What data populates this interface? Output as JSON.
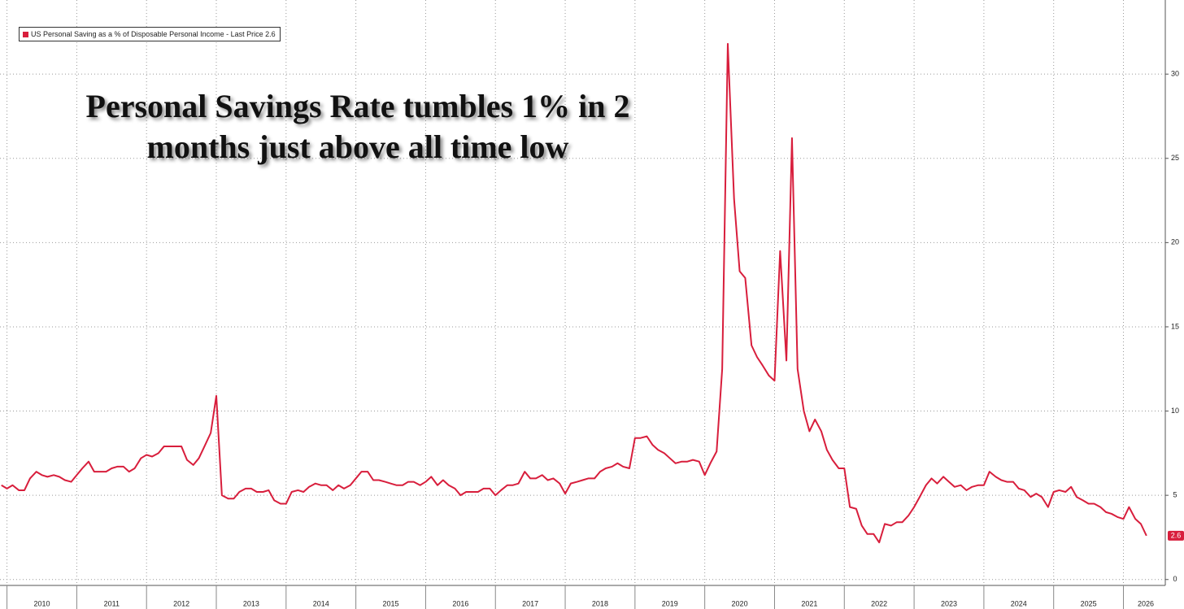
{
  "chart_data": {
    "type": "line",
    "title": "Personal Savings Rate tumbles 1% in 2 months just above all time low",
    "x": [
      2009.92,
      2010.0,
      2010.08,
      2010.17,
      2010.25,
      2010.33,
      2010.42,
      2010.5,
      2010.58,
      2010.67,
      2010.75,
      2010.83,
      2010.92,
      2011.0,
      2011.08,
      2011.17,
      2011.25,
      2011.33,
      2011.42,
      2011.5,
      2011.58,
      2011.67,
      2011.75,
      2011.83,
      2011.92,
      2012.0,
      2012.08,
      2012.17,
      2012.25,
      2012.33,
      2012.42,
      2012.5,
      2012.58,
      2012.67,
      2012.75,
      2012.83,
      2012.92,
      2013.0,
      2013.08,
      2013.17,
      2013.25,
      2013.33,
      2013.42,
      2013.5,
      2013.58,
      2013.67,
      2013.75,
      2013.83,
      2013.92,
      2014.0,
      2014.08,
      2014.17,
      2014.25,
      2014.33,
      2014.42,
      2014.5,
      2014.58,
      2014.67,
      2014.75,
      2014.83,
      2014.92,
      2015.0,
      2015.08,
      2015.17,
      2015.25,
      2015.33,
      2015.42,
      2015.5,
      2015.58,
      2015.67,
      2015.75,
      2015.83,
      2015.92,
      2016.0,
      2016.08,
      2016.17,
      2016.25,
      2016.33,
      2016.42,
      2016.5,
      2016.58,
      2016.67,
      2016.75,
      2016.83,
      2016.92,
      2017.0,
      2017.08,
      2017.17,
      2017.25,
      2017.33,
      2017.42,
      2017.5,
      2017.58,
      2017.67,
      2017.75,
      2017.83,
      2017.92,
      2018.0,
      2018.08,
      2018.17,
      2018.25,
      2018.33,
      2018.42,
      2018.5,
      2018.58,
      2018.67,
      2018.75,
      2018.83,
      2018.92,
      2019.0,
      2019.08,
      2019.17,
      2019.25,
      2019.33,
      2019.42,
      2019.5,
      2019.58,
      2019.67,
      2019.75,
      2019.83,
      2019.92,
      2020.0,
      2020.08,
      2020.17,
      2020.25,
      2020.33,
      2020.42,
      2020.5,
      2020.58,
      2020.67,
      2020.75,
      2020.83,
      2020.92,
      2021.0,
      2021.08,
      2021.17,
      2021.25,
      2021.33,
      2021.42,
      2021.5,
      2021.58,
      2021.67,
      2021.75,
      2021.83,
      2021.92,
      2022.0,
      2022.08,
      2022.17,
      2022.25,
      2022.33,
      2022.42,
      2022.5,
      2022.58,
      2022.67,
      2022.75,
      2022.83,
      2022.92,
      2023.0,
      2023.08,
      2023.17,
      2023.25,
      2023.33,
      2023.42,
      2023.5,
      2023.58,
      2023.67,
      2023.75,
      2023.83,
      2023.92,
      2024.0,
      2024.08,
      2024.17,
      2024.25,
      2024.33,
      2024.42,
      2024.5,
      2024.58,
      2024.67,
      2024.75,
      2024.83,
      2024.92,
      2025.0,
      2025.08,
      2025.17,
      2025.25,
      2025.33,
      2025.42,
      2025.5,
      2025.58,
      2025.67,
      2025.75,
      2025.83,
      2025.92,
      2026.0,
      2026.08,
      2026.17,
      2026.25,
      2026.33
    ],
    "series": [
      {
        "name": "US Personal Saving as a % of Disposable Personal Income - Last Price 2.6",
        "color": "#d81e3c",
        "values": [
          5.6,
          5.4,
          5.6,
          5.3,
          5.3,
          6.0,
          6.4,
          6.2,
          6.1,
          6.2,
          6.1,
          5.9,
          5.8,
          6.2,
          6.6,
          7.0,
          6.4,
          6.4,
          6.4,
          6.6,
          6.7,
          6.7,
          6.4,
          6.6,
          7.2,
          7.4,
          7.3,
          7.5,
          7.9,
          7.9,
          7.9,
          7.9,
          7.1,
          6.8,
          7.2,
          7.9,
          8.7,
          10.9,
          5.0,
          4.8,
          4.8,
          5.2,
          5.4,
          5.4,
          5.2,
          5.2,
          5.3,
          4.7,
          4.5,
          4.5,
          5.2,
          5.3,
          5.2,
          5.5,
          5.7,
          5.6,
          5.6,
          5.3,
          5.6,
          5.4,
          5.6,
          6.0,
          6.4,
          6.4,
          5.9,
          5.9,
          5.8,
          5.7,
          5.6,
          5.6,
          5.8,
          5.8,
          5.6,
          5.8,
          6.1,
          5.6,
          5.9,
          5.6,
          5.4,
          5.0,
          5.2,
          5.2,
          5.2,
          5.4,
          5.4,
          5.0,
          5.3,
          5.6,
          5.6,
          5.7,
          6.4,
          6.0,
          6.0,
          6.2,
          5.9,
          6.0,
          5.7,
          5.1,
          5.7,
          5.8,
          5.9,
          6.0,
          6.0,
          6.4,
          6.6,
          6.7,
          6.9,
          6.7,
          6.6,
          8.4,
          8.4,
          8.5,
          8.0,
          7.7,
          7.5,
          7.2,
          6.9,
          7.0,
          7.0,
          7.1,
          7.0,
          6.2,
          6.9,
          7.6,
          12.5,
          31.8,
          22.6,
          18.3,
          17.9,
          13.9,
          13.2,
          12.7,
          12.1,
          11.8,
          19.5,
          13.0,
          26.2,
          12.5,
          10.0,
          8.8,
          9.5,
          8.8,
          7.7,
          7.1,
          6.6,
          6.6,
          4.3,
          4.2,
          3.2,
          2.7,
          2.7,
          2.2,
          3.3,
          3.2,
          3.4,
          3.4,
          3.8,
          4.3,
          4.9,
          5.6,
          6.0,
          5.7,
          6.1,
          5.8,
          5.5,
          5.6,
          5.3,
          5.5,
          5.6,
          5.6,
          6.4,
          6.1,
          5.9,
          5.8,
          5.8,
          5.4,
          5.3,
          4.9,
          5.1,
          4.9,
          4.3,
          5.2,
          5.3,
          5.2,
          5.5,
          4.9,
          4.7,
          4.5,
          4.5,
          4.3,
          4.0,
          3.9,
          3.7,
          3.6,
          4.3,
          3.6,
          3.3,
          2.6
        ]
      }
    ],
    "xlim": [
      2009.9,
      2026.6
    ],
    "xticks": [
      2010,
      2011,
      2012,
      2013,
      2014,
      2015,
      2016,
      2017,
      2018,
      2019,
      2020,
      2021,
      2022,
      2023,
      2024,
      2025,
      2026
    ],
    "ylim": [
      -0.35,
      34.4
    ],
    "yticks": [
      0,
      5,
      10,
      15,
      20,
      25,
      30
    ],
    "grid": true,
    "legend": "top-left"
  }
}
